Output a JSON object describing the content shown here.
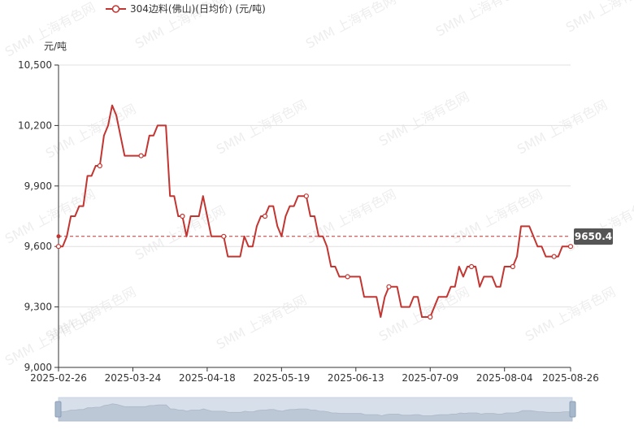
{
  "chart_data": {
    "type": "line",
    "title": "",
    "ylabel": "元/吨",
    "xlabel": "",
    "ylim": [
      9000,
      10500
    ],
    "y_ticks": [
      9000,
      9300,
      9600,
      9900,
      10200,
      10500
    ],
    "y_tick_labels": [
      "9,000",
      "9,300",
      "9,600",
      "9,900",
      "10,200",
      "10,500"
    ],
    "x_tick_labels": [
      "2025-02-26",
      "2025-03-24",
      "2025-04-18",
      "2025-05-19",
      "2025-06-13",
      "2025-07-09",
      "2025-08-04",
      "2025-08-26"
    ],
    "legend": {
      "position": "top-left",
      "label": "304边料(佛山)(日均价)   (元/吨)"
    },
    "grid": true,
    "average_line": {
      "value": 9650.4,
      "label": "9650.4"
    },
    "series": [
      {
        "name": "304边料(佛山)(日均价)   (元/吨)",
        "color": "#c23531",
        "x": [
          "2025-02-26",
          "2025-02-27",
          "2025-02-28",
          "2025-03-03",
          "2025-03-04",
          "2025-03-05",
          "2025-03-06",
          "2025-03-07",
          "2025-03-10",
          "2025-03-11",
          "2025-03-12",
          "2025-03-13",
          "2025-03-14",
          "2025-03-17",
          "2025-03-18",
          "2025-03-19",
          "2025-03-20",
          "2025-03-21",
          "2025-03-24",
          "2025-03-25",
          "2025-03-26",
          "2025-03-27",
          "2025-03-28",
          "2025-03-31",
          "2025-04-01",
          "2025-04-02",
          "2025-04-03",
          "2025-04-07",
          "2025-04-08",
          "2025-04-09",
          "2025-04-10",
          "2025-04-11",
          "2025-04-14",
          "2025-04-15",
          "2025-04-16",
          "2025-04-17",
          "2025-04-18",
          "2025-04-21",
          "2025-04-22",
          "2025-04-23",
          "2025-04-24",
          "2025-04-25",
          "2025-04-28",
          "2025-04-29",
          "2025-04-30",
          "2025-05-06",
          "2025-05-07",
          "2025-05-08",
          "2025-05-09",
          "2025-05-12",
          "2025-05-13",
          "2025-05-14",
          "2025-05-15",
          "2025-05-16",
          "2025-05-19",
          "2025-05-20",
          "2025-05-21",
          "2025-05-22",
          "2025-05-23",
          "2025-05-26",
          "2025-05-27",
          "2025-05-28",
          "2025-05-29",
          "2025-05-30",
          "2025-06-03",
          "2025-06-04",
          "2025-06-05",
          "2025-06-06",
          "2025-06-09",
          "2025-06-10",
          "2025-06-11",
          "2025-06-12",
          "2025-06-13",
          "2025-06-16",
          "2025-06-17",
          "2025-06-18",
          "2025-06-19",
          "2025-06-20",
          "2025-06-23",
          "2025-06-24",
          "2025-06-25",
          "2025-06-26",
          "2025-06-27",
          "2025-06-30",
          "2025-07-01",
          "2025-07-02",
          "2025-07-03",
          "2025-07-04",
          "2025-07-07",
          "2025-07-08",
          "2025-07-09",
          "2025-07-10",
          "2025-07-11",
          "2025-07-14",
          "2025-07-15",
          "2025-07-16",
          "2025-07-17",
          "2025-07-18",
          "2025-07-21",
          "2025-07-22",
          "2025-07-23",
          "2025-07-24",
          "2025-07-25",
          "2025-07-28",
          "2025-07-29",
          "2025-07-30",
          "2025-07-31",
          "2025-08-01",
          "2025-08-04",
          "2025-08-05",
          "2025-08-06",
          "2025-08-07",
          "2025-08-08",
          "2025-08-11",
          "2025-08-12",
          "2025-08-13",
          "2025-08-14",
          "2025-08-15",
          "2025-08-18",
          "2025-08-19",
          "2025-08-20",
          "2025-08-21",
          "2025-08-22",
          "2025-08-25",
          "2025-08-26"
        ],
        "values": [
          9600,
          9600,
          9650,
          9750,
          9750,
          9800,
          9800,
          9950,
          9950,
          10000,
          10000,
          10150,
          10200,
          10300,
          10250,
          10150,
          10050,
          10050,
          10050,
          10050,
          10050,
          10050,
          10150,
          10150,
          10200,
          10200,
          10200,
          9850,
          9850,
          9750,
          9750,
          9650,
          9750,
          9750,
          9750,
          9850,
          9750,
          9650,
          9650,
          9650,
          9650,
          9550,
          9550,
          9550,
          9550,
          9650,
          9600,
          9600,
          9700,
          9750,
          9750,
          9800,
          9800,
          9700,
          9650,
          9750,
          9800,
          9800,
          9850,
          9850,
          9850,
          9750,
          9750,
          9650,
          9650,
          9600,
          9500,
          9500,
          9450,
          9450,
          9450,
          9450,
          9450,
          9450,
          9350,
          9350,
          9350,
          9350,
          9250,
          9350,
          9400,
          9400,
          9400,
          9300,
          9300,
          9300,
          9350,
          9350,
          9250,
          9250,
          9250,
          9300,
          9350,
          9350,
          9350,
          9400,
          9400,
          9500,
          9450,
          9500,
          9500,
          9500,
          9400,
          9450,
          9450,
          9450,
          9400,
          9400,
          9500,
          9500,
          9500,
          9550,
          9700,
          9700,
          9700,
          9650,
          9600,
          9600,
          9550,
          9550,
          9550,
          9550,
          9600,
          9600,
          9600
        ]
      }
    ]
  },
  "watermark": "SMM 上海有色网"
}
